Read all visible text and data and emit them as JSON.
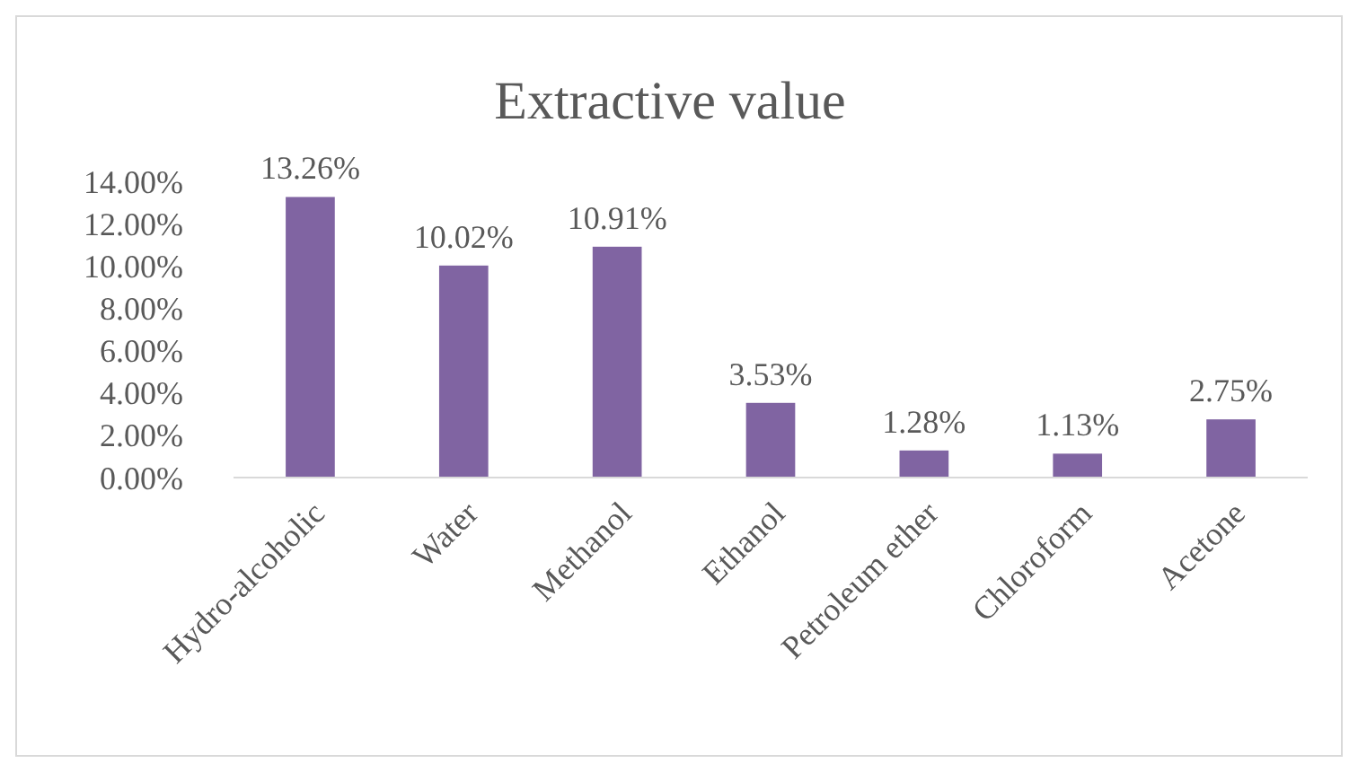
{
  "chart_data": {
    "type": "bar",
    "title": "Extractive value",
    "categories": [
      "Hydro-alcoholic",
      "Water",
      "Methanol",
      "Ethanol",
      "Petroleum ether",
      "Chloroform",
      "Acetone"
    ],
    "values": [
      13.26,
      10.02,
      10.91,
      3.53,
      1.28,
      1.13,
      2.75
    ],
    "value_labels": [
      "13.26%",
      "10.02%",
      "10.91%",
      "3.53%",
      "1.28%",
      "1.13%",
      "2.75%"
    ],
    "color": "#8064a2",
    "ylim": [
      0,
      14
    ],
    "yticks": [
      {
        "value": 0,
        "label": "0.00%"
      },
      {
        "value": 2,
        "label": "2.00%"
      },
      {
        "value": 4,
        "label": "4.00%"
      },
      {
        "value": 6,
        "label": "6.00%"
      },
      {
        "value": 8,
        "label": "8.00%"
      },
      {
        "value": 10,
        "label": "10.00%"
      },
      {
        "value": 12,
        "label": "12.00%"
      },
      {
        "value": 14,
        "label": "14.00%"
      }
    ],
    "grid": false
  }
}
